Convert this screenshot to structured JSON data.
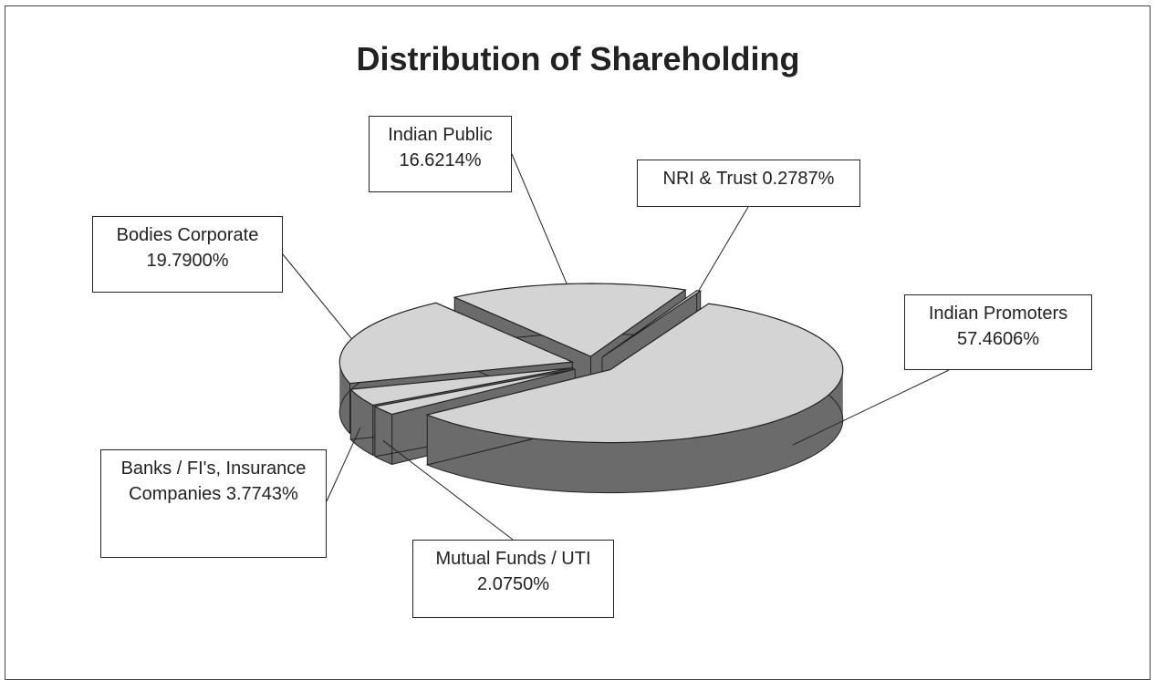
{
  "chart_data": {
    "type": "pie",
    "title": "Distribution of Shareholding",
    "categories": [
      "Indian Promoters",
      "Mutual Funds / UTI",
      "Banks / FI's, Insurance Companies",
      "Bodies Corporate",
      "Indian Public",
      "NRI & Trust"
    ],
    "values": [
      57.4606,
      2.075,
      3.7743,
      19.79,
      16.6214,
      0.2787
    ],
    "value_labels": [
      "57.4606%",
      "2.0750%",
      "3.7743%",
      "19.7900%",
      "16.6214%",
      "0.2787%"
    ],
    "color": "#d4d4d4",
    "side_color": "#6b6b6b",
    "three_d": true,
    "exploded": true
  }
}
